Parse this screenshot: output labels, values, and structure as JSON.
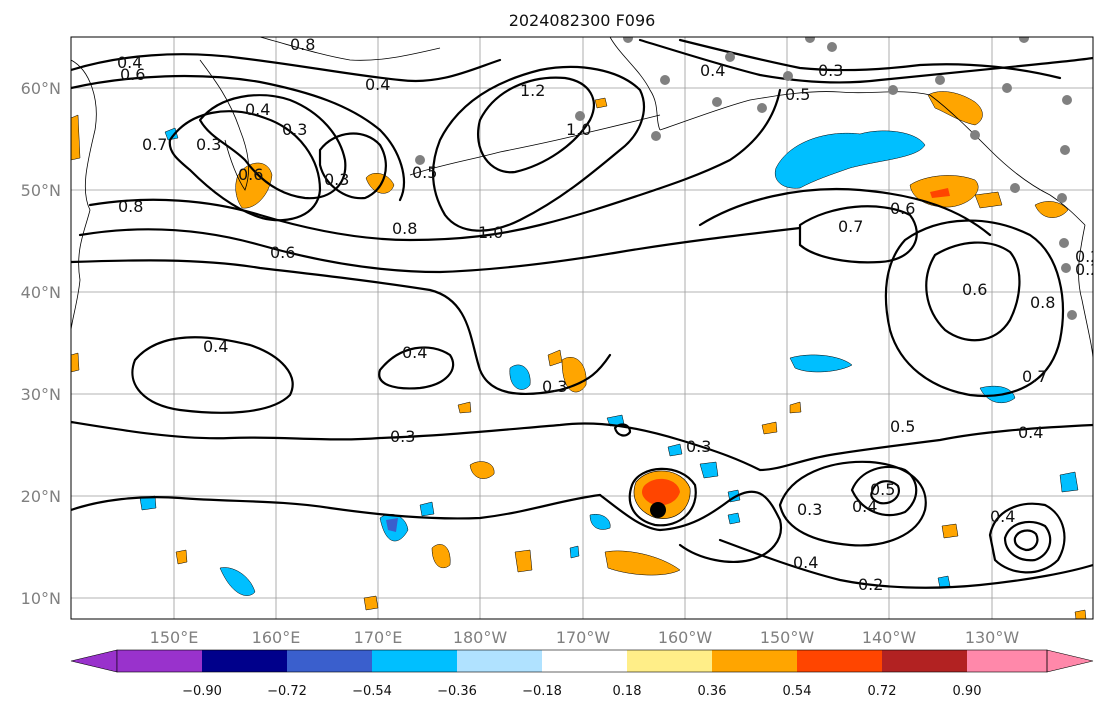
{
  "title": "2024082300 F096",
  "map": {
    "lon_ticks": [
      "150°E",
      "160°E",
      "170°E",
      "180°W",
      "170°W",
      "160°W",
      "150°W",
      "140°W",
      "130°W"
    ],
    "lat_ticks": [
      "60°N",
      "50°N",
      "40°N",
      "30°N",
      "20°N",
      "10°N"
    ],
    "contour_labels": [
      "0.4",
      "0.6",
      "0.8",
      "0.4",
      "0.3",
      "0.5",
      "0.4",
      "0.8",
      "1.2",
      "1.0",
      "0.4",
      "0.3",
      "0.5",
      "0.3",
      "0.3",
      "0.6",
      "0.7",
      "0.8",
      "0.6",
      "1.0",
      "0.7",
      "0.6",
      "0.6",
      "0.8",
      "0.2",
      "0.2",
      "0.4",
      "0.4",
      "0.3",
      "0.7",
      "0.3",
      "0.3",
      "0.5",
      "0.4",
      "0.3",
      "0.4",
      "0.5",
      "0.4",
      "0.4",
      "0.2"
    ]
  },
  "colorbar": {
    "tick_labels": [
      "−0.90",
      "−0.72",
      "−0.54",
      "−0.36",
      "−0.18",
      "0.18",
      "0.36",
      "0.54",
      "0.72",
      "0.90"
    ],
    "colors": [
      "#9932cc",
      "#00008b",
      "#3a5fcd",
      "#00bfff",
      "#b0e2ff",
      "#ffffff",
      "#ffee88",
      "#ffa500",
      "#ff4500",
      "#b22222",
      "#ff88aa"
    ]
  },
  "fill_colors": {
    "positive_light": "#ffa500",
    "positive_strong": "#ff4500",
    "negative": "#00bfff",
    "negative_strong": "#3a5fcd",
    "marker": "#808080",
    "storm_center": "#000000"
  }
}
